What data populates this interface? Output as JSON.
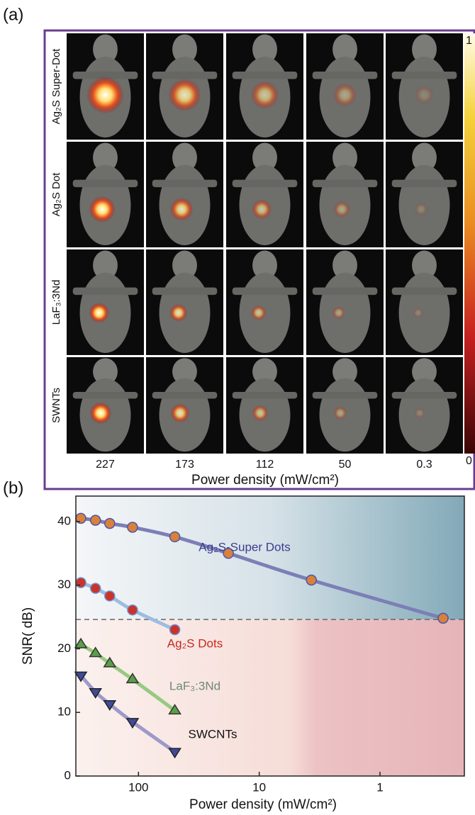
{
  "panel_a": {
    "label": "(a)",
    "row_labels": [
      "Ag₂S Super-Dot",
      "Ag₂S Dot",
      "LaF₃:3Nd",
      "SWNTs"
    ],
    "column_labels": [
      "227",
      "173",
      "112",
      "50",
      "0.3"
    ],
    "xlabel": "Power density (mW/cm²)",
    "colorbar_ticks": [
      1,
      0
    ]
  },
  "chart_data": {
    "type": "line",
    "label": "(b)",
    "xlabel": "Power density (mW/cm²)",
    "ylabel": "SNR( dB)",
    "xscale": "log",
    "xlim": [
      330,
      0.2
    ],
    "xticks": [
      100,
      10,
      1
    ],
    "ylim": [
      0,
      44
    ],
    "yticks": [
      0,
      10,
      20,
      30,
      40
    ],
    "threshold": 24.6,
    "series": [
      {
        "name": "Ag₂S-Super Dots",
        "color": "#7c7fb6",
        "text_color": "#3b3d8f",
        "marker": "circle",
        "marker_color": "#d9803a",
        "edge_color": "#4d55a8",
        "x": [
          300,
          227,
          173,
          112,
          50,
          18,
          3.7,
          0.3
        ],
        "values": [
          40.5,
          40.2,
          39.7,
          39.1,
          37.6,
          35.0,
          30.8,
          24.8
        ]
      },
      {
        "name": "Ag₂S Dots",
        "color": "#9dbde0",
        "text_color": "#c8281e",
        "marker": "circle",
        "marker_color": "#c9342a",
        "edge_color": "#6f8fd0",
        "x": [
          300,
          227,
          173,
          112,
          50
        ],
        "values": [
          30.4,
          29.5,
          28.3,
          26.1,
          23.0
        ]
      },
      {
        "name": "LaF₃:3Nd",
        "color": "#97c983",
        "text_color": "#6e8a76",
        "marker": "triangle-up",
        "marker_color": "#5a9e48",
        "edge_color": "#333333",
        "x": [
          300,
          227,
          173,
          112,
          50
        ],
        "values": [
          20.7,
          19.3,
          17.7,
          15.2,
          10.3
        ]
      },
      {
        "name": "SWCNTs",
        "color": "#9d99c8",
        "text_color": "#111111",
        "marker": "triangle-down",
        "marker_color": "#3f4a98",
        "edge_color": "#222222",
        "x": [
          300,
          227,
          173,
          112,
          50
        ],
        "values": [
          15.8,
          13.2,
          11.3,
          8.5,
          3.8
        ]
      }
    ]
  }
}
